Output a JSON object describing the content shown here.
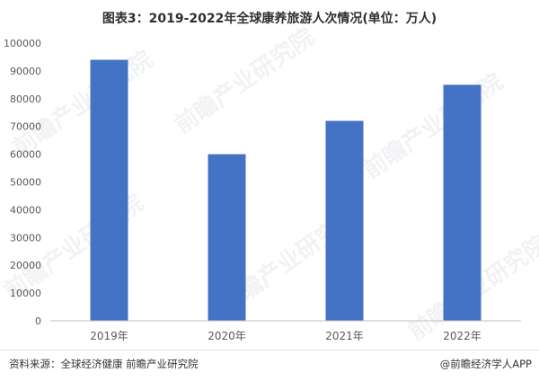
{
  "page": {
    "title": "图表3：2019-2022年全球康养旅游人次情况(单位：万人)",
    "source": "资料来源：全球经济健康 前瞻产业研究院",
    "credit": "@前瞻经济学人APP",
    "watermark": "前瞻产业研究院"
  },
  "colors": {
    "bar": "#4472c4",
    "axis": "#bfbfbf",
    "text": "#595959"
  },
  "chart_data": {
    "type": "bar",
    "title": "图表3：2019-2022年全球康养旅游人次情况(单位：万人)",
    "categories": [
      "2019年",
      "2020年",
      "2021年",
      "2022年"
    ],
    "values": [
      94000,
      60000,
      72000,
      85000
    ],
    "ylim": [
      0,
      100000
    ],
    "yticks": [
      0,
      10000,
      20000,
      30000,
      40000,
      50000,
      60000,
      70000,
      80000,
      90000,
      100000
    ],
    "grid": false,
    "legend": "none"
  }
}
